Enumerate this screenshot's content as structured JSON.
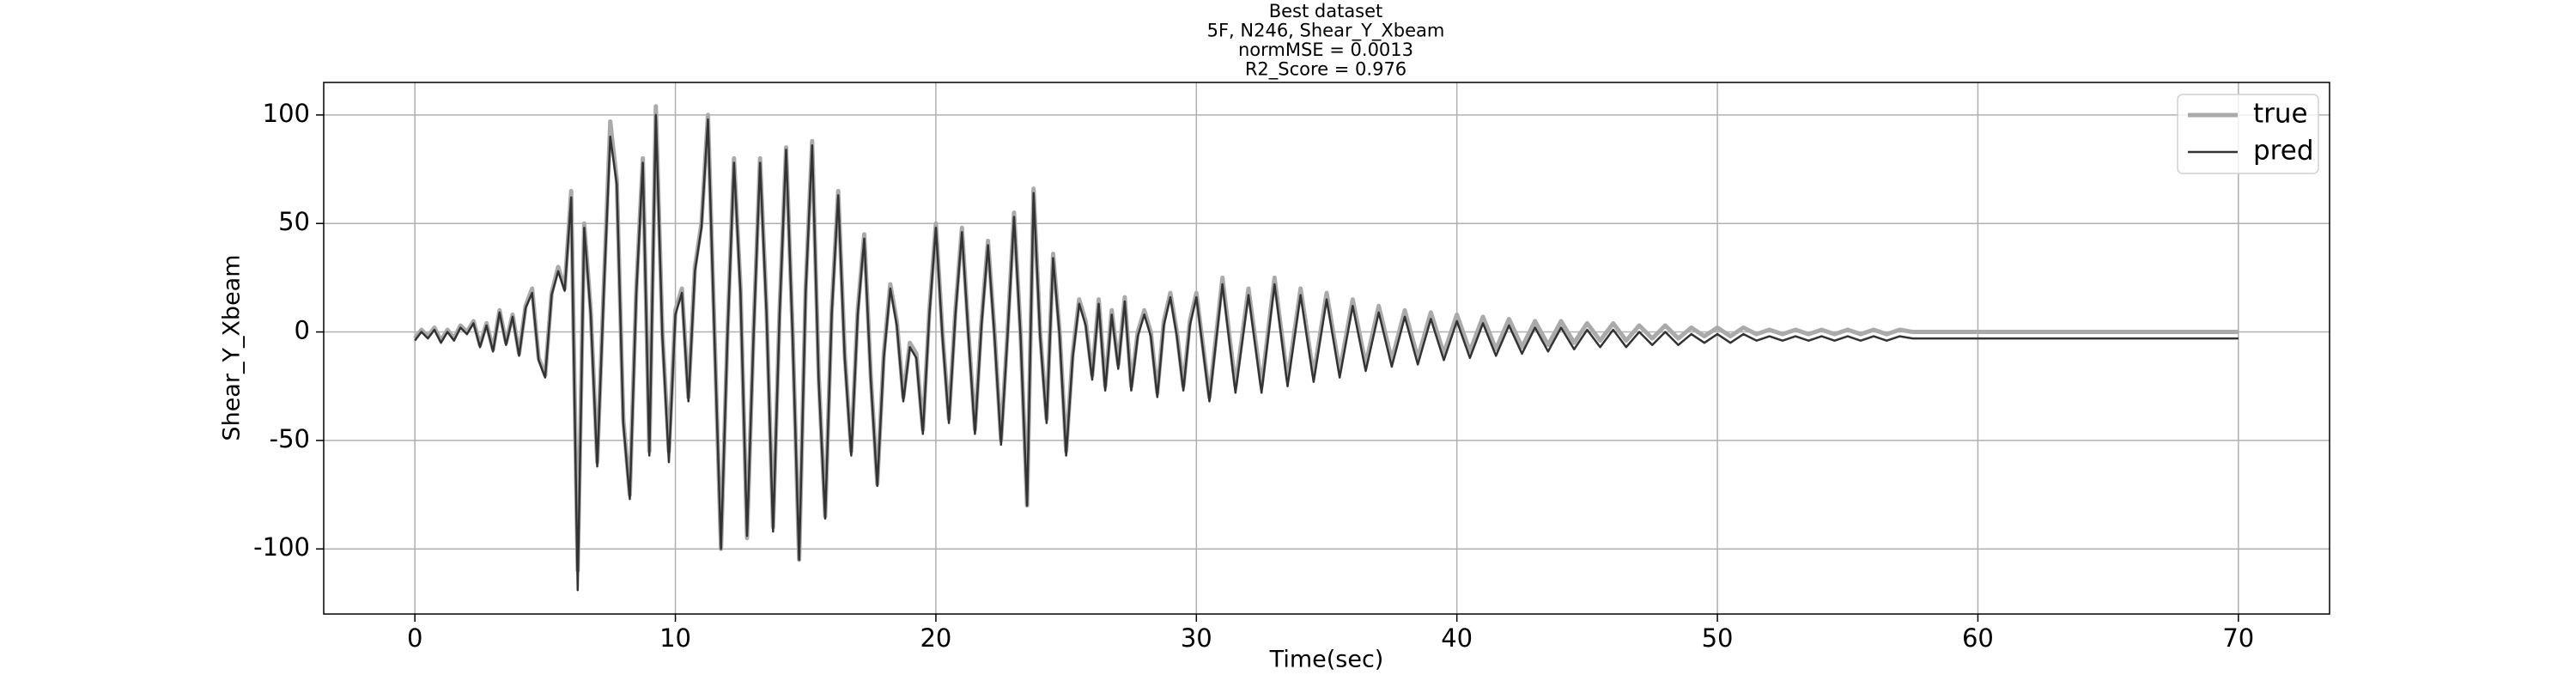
{
  "chart_data": {
    "type": "line",
    "title": [
      "Best dataset",
      "5F, N246, Shear_Y_Xbeam",
      "normMSE = 0.0013",
      "R2_Score = 0.976"
    ],
    "xlabel": "Time(sec)",
    "ylabel": "Shear_Y_Xbeam",
    "xlim": [
      -3.5,
      73.5
    ],
    "ylim": [
      -130,
      115
    ],
    "xticks": [
      0,
      10,
      20,
      30,
      40,
      50,
      60,
      70
    ],
    "yticks": [
      -100,
      -50,
      0,
      50,
      100
    ],
    "grid": true,
    "legend": "upper right",
    "x": [
      0,
      0.25,
      0.5,
      0.75,
      1,
      1.25,
      1.5,
      1.75,
      2,
      2.25,
      2.5,
      2.75,
      3,
      3.25,
      3.5,
      3.75,
      4,
      4.25,
      4.5,
      4.75,
      5,
      5.25,
      5.5,
      5.75,
      6,
      6.25,
      6.5,
      6.75,
      7,
      7.25,
      7.5,
      7.75,
      8,
      8.25,
      8.5,
      8.75,
      9,
      9.25,
      9.5,
      9.75,
      10,
      10.25,
      10.5,
      10.75,
      11,
      11.25,
      11.5,
      11.75,
      12,
      12.25,
      12.5,
      12.75,
      13,
      13.25,
      13.5,
      13.75,
      14,
      14.25,
      14.5,
      14.75,
      15,
      15.25,
      15.5,
      15.75,
      16,
      16.25,
      16.5,
      16.75,
      17,
      17.25,
      17.5,
      17.75,
      18,
      18.25,
      18.5,
      18.75,
      19,
      19.25,
      19.5,
      19.75,
      20,
      20.25,
      20.5,
      20.75,
      21,
      21.25,
      21.5,
      21.75,
      22,
      22.25,
      22.5,
      22.75,
      23,
      23.25,
      23.5,
      23.75,
      24,
      24.25,
      24.5,
      24.75,
      25,
      25.25,
      25.5,
      25.75,
      26,
      26.25,
      26.5,
      26.75,
      27,
      27.25,
      27.5,
      27.75,
      28,
      28.25,
      28.5,
      28.75,
      29,
      29.25,
      29.5,
      29.75,
      30,
      30.5,
      31,
      31.5,
      32,
      32.5,
      33,
      33.5,
      34,
      34.5,
      35,
      35.5,
      36,
      36.5,
      37,
      37.5,
      38,
      38.5,
      39,
      39.5,
      40,
      40.5,
      41,
      41.5,
      42,
      42.5,
      43,
      43.5,
      44,
      44.5,
      45,
      45.5,
      46,
      46.5,
      47,
      47.5,
      48,
      48.5,
      49,
      49.5,
      50,
      50.5,
      51,
      51.5,
      52,
      52.5,
      53,
      53.5,
      54,
      54.5,
      55,
      55.5,
      56,
      56.5,
      57,
      57.5,
      58,
      58.5,
      59,
      59.5,
      60,
      60.5,
      61,
      61.5,
      62,
      62.5,
      63,
      63.5,
      64,
      64.5,
      65,
      65.5,
      66,
      66.5,
      67,
      67.5,
      68,
      68.5,
      69,
      69.5,
      70
    ],
    "series": [
      {
        "name": "true",
        "color": "#aaaaaa",
        "width": 5,
        "values": [
          -3,
          1,
          -2,
          2,
          -4,
          1,
          -3,
          3,
          0,
          5,
          -6,
          4,
          -8,
          10,
          -5,
          8,
          -10,
          12,
          20,
          -12,
          -20,
          18,
          30,
          20,
          65,
          -110,
          50,
          10,
          -60,
          20,
          97,
          70,
          -40,
          -75,
          20,
          80,
          -55,
          104,
          0,
          -55,
          10,
          20,
          -30,
          30,
          50,
          100,
          0,
          -100,
          0,
          80,
          20,
          -95,
          0,
          80,
          10,
          -90,
          10,
          85,
          0,
          -105,
          20,
          88,
          -20,
          -85,
          10,
          65,
          -10,
          -55,
          10,
          45,
          -20,
          -70,
          -10,
          22,
          5,
          -30,
          -5,
          -10,
          -45,
          10,
          50,
          0,
          -40,
          10,
          48,
          0,
          -45,
          5,
          42,
          0,
          -50,
          0,
          55,
          0,
          -80,
          66,
          0,
          -40,
          36,
          0,
          -55,
          -10,
          15,
          5,
          -20,
          15,
          -25,
          10,
          -15,
          16,
          -25,
          0,
          10,
          0,
          -28,
          5,
          18,
          0,
          -25,
          5,
          18,
          -30,
          25,
          -25,
          20,
          -25,
          25,
          -22,
          20,
          -20,
          18,
          -18,
          15,
          -15,
          12,
          -13,
          10,
          -12,
          9,
          -10,
          8,
          -9,
          7,
          -8,
          6,
          -7,
          5,
          -6,
          5,
          -5,
          4,
          -4,
          4,
          -4,
          3,
          -3,
          3,
          -3,
          2,
          -2,
          2,
          -2,
          2,
          -1,
          1,
          -1,
          1,
          -1,
          1,
          -1,
          1,
          -1,
          1,
          -1,
          1,
          0,
          0,
          0,
          0,
          0,
          0,
          0,
          0,
          0,
          0,
          0,
          0,
          0,
          0,
          0,
          0,
          0,
          0,
          0,
          0,
          0,
          0,
          0,
          0,
          0,
          0
        ]
      },
      {
        "name": "pred",
        "color": "#333333",
        "width": 2.5,
        "values": [
          -4,
          0,
          -3,
          1,
          -5,
          0,
          -4,
          2,
          -1,
          4,
          -7,
          3,
          -9,
          9,
          -6,
          7,
          -11,
          11,
          18,
          -13,
          -21,
          17,
          28,
          19,
          62,
          -119,
          48,
          8,
          -62,
          18,
          90,
          68,
          -42,
          -77,
          18,
          78,
          -57,
          100,
          -2,
          -60,
          8,
          18,
          -32,
          28,
          48,
          98,
          -2,
          -100,
          -2,
          78,
          18,
          -94,
          -2,
          78,
          8,
          -92,
          8,
          84,
          -2,
          -105,
          18,
          86,
          -22,
          -86,
          8,
          63,
          -12,
          -57,
          8,
          43,
          -22,
          -71,
          -12,
          20,
          3,
          -32,
          -7,
          -12,
          -47,
          8,
          48,
          -2,
          -42,
          8,
          46,
          -2,
          -47,
          3,
          40,
          -2,
          -52,
          -2,
          53,
          -2,
          -80,
          64,
          -2,
          -42,
          34,
          -2,
          -57,
          -12,
          13,
          3,
          -22,
          13,
          -27,
          8,
          -17,
          14,
          -27,
          -2,
          8,
          -2,
          -30,
          3,
          16,
          -2,
          -27,
          3,
          16,
          -32,
          22,
          -28,
          17,
          -28,
          22,
          -25,
          17,
          -23,
          15,
          -21,
          12,
          -18,
          9,
          -16,
          7,
          -15,
          6,
          -13,
          5,
          -12,
          4,
          -11,
          3,
          -10,
          2,
          -9,
          2,
          -8,
          1,
          -7,
          1,
          -7,
          0,
          -6,
          0,
          -6,
          -1,
          -5,
          -1,
          -5,
          -1,
          -4,
          -2,
          -4,
          -2,
          -4,
          -2,
          -4,
          -2,
          -4,
          -2,
          -4,
          -2,
          -3,
          -3,
          -3,
          -3,
          -3,
          -3,
          -3,
          -3,
          -3,
          -3,
          -3,
          -3,
          -3,
          -3,
          -3,
          -3,
          -3,
          -3,
          -3,
          -3,
          -3,
          -3,
          -3,
          -3,
          -3,
          -3
        ]
      }
    ]
  }
}
